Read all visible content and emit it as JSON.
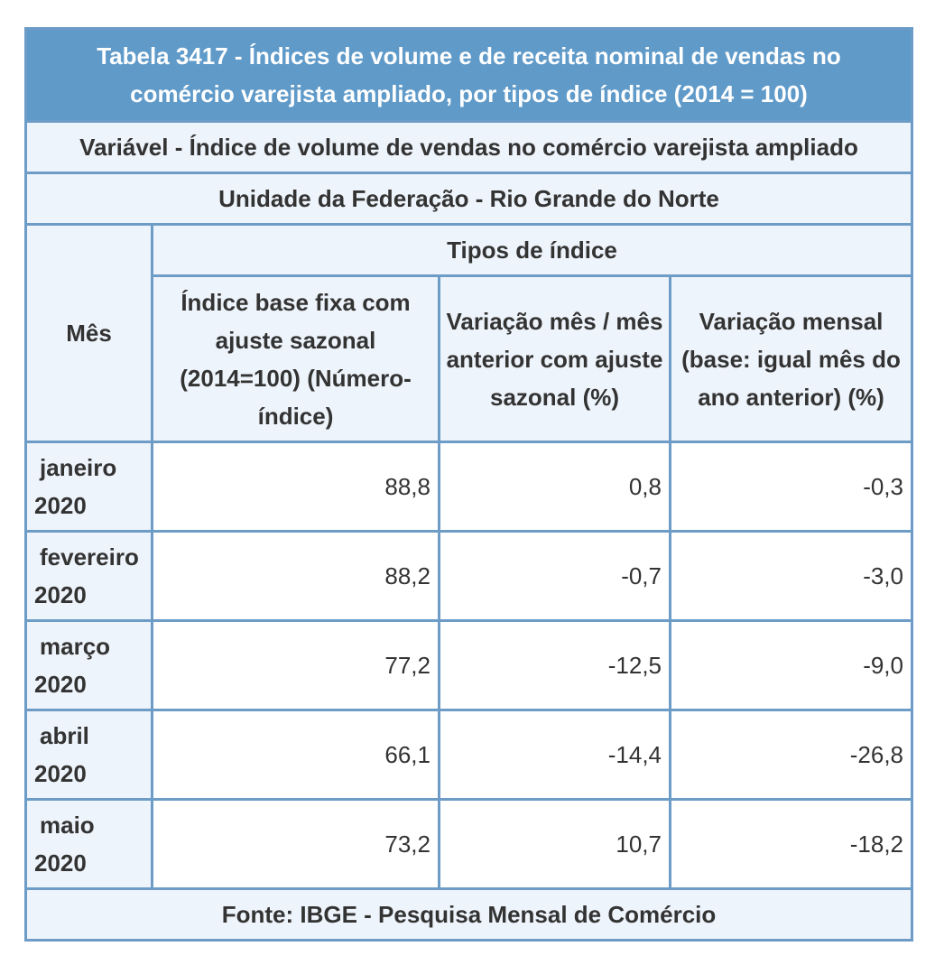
{
  "title": "Tabela 3417 - Índices de volume e de receita nominal de vendas no comércio varejista ampliado, por tipos de índice (2014 = 100)",
  "variable": "Variável - Índice de volume de vendas no comércio varejista ampliado",
  "unit": "Unidade da Federação - Rio Grande do Norte",
  "header": {
    "month": "Mês",
    "group": "Tipos de índice",
    "columns": [
      "Índice base fixa com ajuste sazonal (2014=100)  (Número-índice)",
      "Variação mês / mês anterior com ajuste sazonal (%)",
      "Variação mensal (base: igual mês do ano anterior) (%)"
    ]
  },
  "rows": [
    {
      "month": "janeiro",
      "year": "2020",
      "values": [
        "88,8",
        "0,8",
        "-0,3"
      ]
    },
    {
      "month": "fevereiro",
      "year": "2020",
      "values": [
        "88,2",
        "-0,7",
        "-3,0"
      ]
    },
    {
      "month": "março",
      "year": "2020",
      "values": [
        "77,2",
        "-12,5",
        "-9,0"
      ]
    },
    {
      "month": "abril",
      "year": "2020",
      "values": [
        "66,1",
        "-14,4",
        "-26,8"
      ]
    },
    {
      "month": "maio",
      "year": "2020",
      "values": [
        "73,2",
        "10,7",
        "-18,2"
      ]
    }
  ],
  "source": "Fonte: IBGE - Pesquisa Mensal de Comércio",
  "colors": {
    "title_bg": "#5f9ac9",
    "cell_bg": "#eef4fb",
    "border": "#6d9cc7"
  }
}
